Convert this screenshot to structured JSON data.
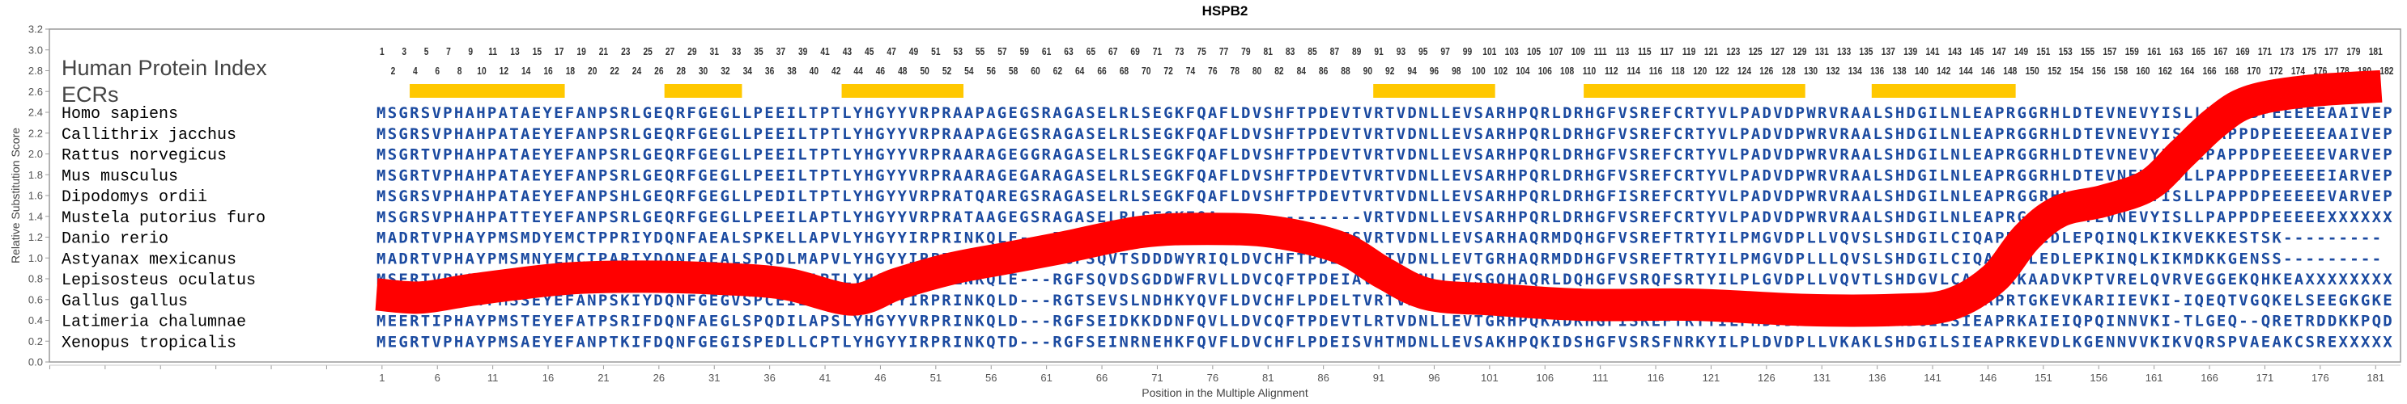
{
  "chart_data": {
    "type": "line",
    "title": "HSPB2",
    "xlabel": "Position in the Multiple Alignment",
    "ylabel": "Relative Substitution Score",
    "ylim": [
      0,
      3.2
    ],
    "xlim": [
      1,
      182
    ],
    "yticks": [
      "0.0",
      "0.2",
      "0.4",
      "0.6",
      "0.8",
      "1.0",
      "1.2",
      "1.4",
      "1.6",
      "1.8",
      "2.0",
      "2.2",
      "2.4",
      "2.6",
      "2.8",
      "3.0",
      "3.2"
    ],
    "xticks": [
      "1",
      "6",
      "11",
      "16",
      "21",
      "26",
      "31",
      "36",
      "41",
      "46",
      "51",
      "56",
      "61",
      "66",
      "71",
      "76",
      "81",
      "86",
      "91",
      "96",
      "101",
      "106",
      "111",
      "116",
      "121",
      "126",
      "131",
      "136",
      "141",
      "146",
      "151",
      "156",
      "161",
      "166",
      "171",
      "176",
      "181"
    ],
    "series": [
      {
        "name": "Relative Substitution Score",
        "color": "#ff0000",
        "x": [
          1,
          5,
          10,
          18,
          25,
          32,
          38,
          44,
          48,
          53,
          58,
          63,
          70,
          76,
          82,
          88,
          92,
          96,
          102,
          110,
          120,
          130,
          138,
          143,
          147,
          150,
          153,
          157,
          161,
          164,
          167,
          170,
          175,
          182
        ],
        "y": [
          0.65,
          0.62,
          0.7,
          0.8,
          0.82,
          0.8,
          0.75,
          0.6,
          0.75,
          0.9,
          1.0,
          1.1,
          1.25,
          1.28,
          1.25,
          1.1,
          0.85,
          0.65,
          0.6,
          0.55,
          0.55,
          0.5,
          0.5,
          0.55,
          0.8,
          1.2,
          1.45,
          1.55,
          1.7,
          2.0,
          2.3,
          2.5,
          2.6,
          2.65
        ]
      }
    ]
  },
  "labels": {
    "human_protein_index": "Human Protein Index",
    "ecrs": "ECRs"
  },
  "human_index": {
    "odd": [
      "1",
      "3",
      "5",
      "7",
      "9",
      "11",
      "13",
      "15",
      "17",
      "19",
      "21",
      "23",
      "25",
      "27",
      "29",
      "31",
      "33",
      "35",
      "37",
      "39",
      "41",
      "43",
      "45",
      "47",
      "49",
      "51",
      "53",
      "55",
      "57",
      "59",
      "61",
      "63",
      "65",
      "67",
      "69",
      "71",
      "73",
      "75",
      "77",
      "79",
      "81",
      "83",
      "85",
      "87",
      "89",
      "91",
      "93",
      "95",
      "97",
      "99",
      "101",
      "103",
      "105",
      "107",
      "109",
      "111",
      "113",
      "115",
      "117",
      "119",
      "121",
      "123",
      "125",
      "127",
      "129",
      "131",
      "133",
      "135",
      "137",
      "139",
      "141",
      "143",
      "145",
      "147",
      "149",
      "151",
      "153",
      "155",
      "157",
      "159",
      "161",
      "163",
      "165",
      "167",
      "169",
      "171",
      "173",
      "175",
      "177",
      "179",
      "181"
    ],
    "even": [
      "2",
      "4",
      "6",
      "8",
      "10",
      "12",
      "14",
      "16",
      "18",
      "20",
      "22",
      "24",
      "26",
      "28",
      "30",
      "32",
      "34",
      "36",
      "38",
      "40",
      "42",
      "44",
      "46",
      "48",
      "50",
      "52",
      "54",
      "56",
      "58",
      "60",
      "62",
      "64",
      "66",
      "68",
      "70",
      "72",
      "74",
      "76",
      "78",
      "80",
      "82",
      "84",
      "86",
      "88",
      "90",
      "92",
      "94",
      "96",
      "98",
      "100",
      "102",
      "104",
      "106",
      "108",
      "110",
      "112",
      "114",
      "116",
      "118",
      "120",
      "122",
      "124",
      "126",
      "128",
      "130",
      "132",
      "134",
      "136",
      "138",
      "140",
      "142",
      "144",
      "146",
      "148",
      "150",
      "152",
      "154",
      "156",
      "158",
      "160",
      "162",
      "164",
      "166",
      "168",
      "170",
      "172",
      "174",
      "176",
      "178",
      "180",
      "182"
    ]
  },
  "ecrs": {
    "color": "#ffc800",
    "regions": [
      [
        4,
        17
      ],
      [
        27,
        33
      ],
      [
        43,
        53
      ],
      [
        91,
        101
      ],
      [
        110,
        129
      ],
      [
        136,
        148
      ]
    ]
  },
  "alignment": [
    {
      "species": "Homo sapiens",
      "sequence": "MSGRSVPHAHPATAEYEFANPSRLGEQRFGEGLLPEEILTPTLYHGYYVRPRAAPAGEGSRAGASELRLSEGKFQAFLDVSHFTPDEVTVRTVDNLLEVSARHPQRLDRHGFVSREFCRTYVLPADVDPWRVRAALSHDGILNLEAPRGGRHLDTEVNEVYISLLPAPPDPEEEEEAAIVEP"
    },
    {
      "species": "Callithrix jacchus",
      "sequence": "MSGRSVPHAHPATAEYEFANPSRLGEQRFGEGLLPEEILTPTLYHGYYVRPRAAPAGEGSRAGASELRLSEGKFQAFLDVSHFTPDEVTVRTVDNLLEVSARHPQRLDRHGFVSREFCRTYVLPADVDPWRVRAALSHDGILNLEAPRGGRHLDTEVNEVYISLLPAPPDPEEEEEAAIVEP"
    },
    {
      "species": "Rattus norvegicus",
      "sequence": "MSGRTVPHAHPATAEYEFANPSRLGEQRFGEGLLPEEILTPTLYHGYYVRPRAARAGEGGRAGASELRLSEGKFQAFLDVSHFTPDEVTVRTVDNLLEVSARHPQRLDRHGFVSREFCRTYVLPADVDPWRVRAALSHDGILNLEAPRGGRHLDTEVNEVYISLLPAPPDPEEEEEVARVEP"
    },
    {
      "species": "Mus musculus",
      "sequence": "MSGRTVPHAHPATAEYEFANPSRLGEQRFGEGLLPEEILTPTLYHGYYVRPRAARAGEGARAGASELRLSEGKFQAFLDVSHFTPDEVTVRTVDNLLEVSARHPQRLDRHGFVSREFCRTYVLPADVDPWRVRAALSHDGILNLEAPRGGRHLDTEVNEVYISLLPAPPDPEEEEEIARVEP"
    },
    {
      "species": "Dipodomys ordii",
      "sequence": "MSGRSVPHAHPATAEYEFANPSHLGEQRFGEGLLPEDILTPTLYHGYYVRPRATQAREGSRAGASELRLSEGKFQAFLDVSHFTPDEVTVRTVDNLLEVSARHPQRLDRHGFISREFCRTYVLPADVDPWRVRAALSHDGILNLEAPRGGRHLDTEVNEVYISLLPAPPDPEEEEEVARVEP"
    },
    {
      "species": "Mustela putorius furo",
      "sequence": "MSGRSVPHAHPATTEYEFANPSRLGEQRFGEGLLPEEILAPTLYHGYYVRPRATAAGEGSRAGASELRLSEGKFQA-------------VRTVDNLLEVSARHPQRLDRHGFVSREFCRTYVLPADVDPWRVRAALSHDGILNLEAPRGGRHLDTEVNEVYISLLPAPPDPEEEEEXXXXXX"
    },
    {
      "species": "Danio rerio",
      "sequence": "MADRTVPHAYPMSMDYEMCTPPRIYDQNFAEALSPKELLAPVLYHGYYIRPRINKQLE---RGFSQVESEDDWYRVLLDVCQFTPDEISVRTVDNLLEVSARHAQRMDQHGFVSREFTRTYILPMGVDPLLVQVSLSHDGILCIQAPRKTEDLEPQINQLKIKVEKKESTSK---------"
    },
    {
      "species": "Astyanax mexicanus",
      "sequence": "MADRTVPHAYPMSMNYEMCTPARIYDQNFAEALSPQDLMAPVLYHGYYIRPRINKQLE---RGFSQVTSDDDWYRIQLDVCHFTPDELNVRTVDNLLEVTGRHAQRMDDHGFVSREFTRTYILPMGVDPLLLQVSLSHDGILCIQAPRKLEDLEPKINQLKIKMDKKGENSS---------"
    },
    {
      "species": "Lepisosteus oculatus",
      "sequence": "MSERTVPHAYPMSVEYEMASPCRIYDQNFGEGLSPQDVLAPTLYHGYYIRPRLNKQLE---RGFSQVDSGDDWFRVLLDVCQFTPDEIAVRTVDNLLEVSGQHAQRLDQHGFVSRQFSRTYILPLGVDPLLVQVTLSHDGVLCAEAPRKAADVKPTVRELQVRVEGGEKQHKEAXXXXXXXX"
    },
    {
      "species": "Gallus gallus",
      "sequence": "MAARTVPHAYPMSSEYEFANPSKIYDQNFGEGVSPCEILAPALYHGYYIRPRINKQLD---RGTSEVSLNDHKYQVFLDVCHFLPDELTVRTVDNLLEVVGQHPQRADRHGFISREFTRTYILPLDVDPLLMRATLSHDGILSIVAPRTGKEVKARIIEVKI-IQEQTVGQKELSEEGKGKE"
    },
    {
      "species": "Latimeria chalumnae",
      "sequence": "MEERTIPHAYPMSTEYEFATPSRIFDQNFAEGLSPQDILAPSLYHGYYVRPRINKQLD---RGFSEIDKKDDNFQVLLDVCQFTPDEVTLRTVDNLLEVTGRHPQKADKHGFISREFTRTYILPMDVDPLLVRASLSHDGILSIEAPRKAIEIQPQINNVKI-TLGEQ--QRETRDDKKPQD"
    },
    {
      "species": "Xenopus tropicalis",
      "sequence": "MEGRTVPHAYPMSAEYEFANPTKIFDQNFGEGISPEDLLCPTLYHGYYIRPRINKQTD---RGFSEINRNEHKFQVFLDVCHFLPDEISVHTMDNLLEVSAKHPQKIDSHGFVSRSFNRKYILPLDVDPLLVKAKLSHDGILSIEAPRKEVDLKGENNVVKIKVQRSPVAEAKCSREXXXXX"
    }
  ]
}
